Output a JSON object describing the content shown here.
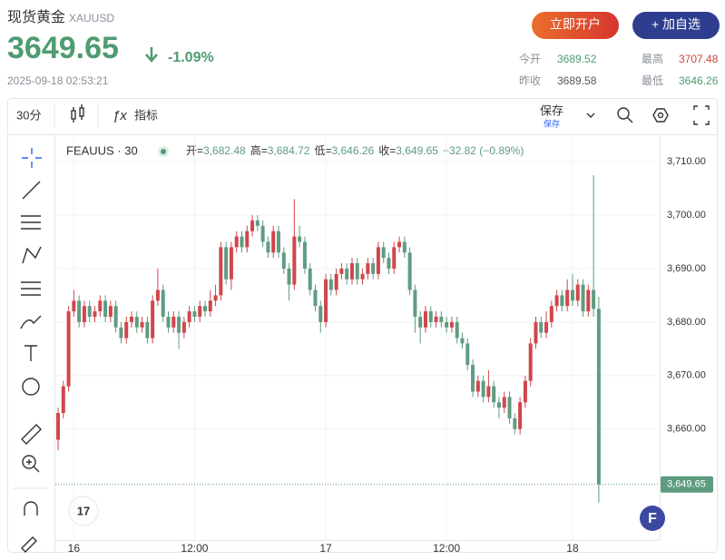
{
  "header": {
    "title": "现货黄金",
    "symbol": "XAUUSD",
    "price": "3649.65",
    "change": "-1.09%",
    "timestamp": "2025-09-18 02:53:21",
    "buttons": [
      "立即开户",
      "+ 加自选"
    ],
    "stats": [
      {
        "label": "今开",
        "value": "3689.52"
      },
      {
        "label": "最高",
        "value": "3707.48"
      },
      {
        "label": "昨收",
        "value": "3689.58"
      },
      {
        "label": "最低",
        "value": "3646.26"
      }
    ]
  },
  "toolbar": {
    "interval": "30分",
    "indicators": "指标",
    "save": "保存",
    "save_sub": "保存"
  },
  "chart_data": {
    "type": "candlestick",
    "symbol": "FEAUUS · 30",
    "legend": [
      {
        "label": "开=",
        "value": "3,682.48"
      },
      {
        "label": "高=",
        "value": "3,684.72"
      },
      {
        "label": "低=",
        "value": "3,646.26"
      },
      {
        "label": "收=",
        "value": "3,649.65"
      }
    ],
    "legend_change": "−32.82 (−0.89%)",
    "up_color": "#d0464c",
    "down_color": "#5f9c80",
    "open": [
      3658,
      3663,
      3668,
      3682,
      3684,
      3680,
      3683,
      3681,
      3682,
      3684,
      3681,
      3683,
      3679,
      3677,
      3680,
      3681,
      3679,
      3680,
      3677,
      3684,
      3686,
      3681,
      3679,
      3681,
      3678,
      3680,
      3682,
      3681,
      3683,
      3682,
      3684,
      3685,
      3694,
      3688,
      3694,
      3696,
      3694,
      3697,
      3699,
      3698,
      3695,
      3693,
      3697,
      3693,
      3690,
      3687,
      3696,
      3695,
      3690,
      3686,
      3683,
      3680,
      3688,
      3686,
      3689,
      3690,
      3688,
      3691,
      3688,
      3689,
      3691,
      3689,
      3694,
      3692,
      3690,
      3694,
      3695,
      3693,
      3686,
      3681,
      3679,
      3682,
      3680,
      3681,
      3680,
      3679,
      3680,
      3677,
      3676,
      3672,
      3667,
      3669,
      3666,
      3668,
      3665,
      3664,
      3666,
      3662,
      3660,
      3665,
      3669,
      3676,
      3680,
      3678,
      3680,
      3683,
      3685,
      3683,
      3686,
      3684,
      3687,
      3682,
      3686,
      3682.48
    ],
    "high": [
      3664,
      3669,
      3683,
      3686,
      3685,
      3684,
      3684,
      3683,
      3685,
      3685,
      3684,
      3684,
      3680,
      3681,
      3682,
      3682,
      3681,
      3681,
      3685,
      3690,
      3687,
      3682,
      3682,
      3682,
      3681,
      3683,
      3683,
      3684,
      3684,
      3686,
      3687,
      3695,
      3695,
      3695,
      3697,
      3697,
      3698,
      3700,
      3700,
      3699,
      3696,
      3698,
      3698,
      3694,
      3691,
      3703,
      3698,
      3696,
      3691,
      3687,
      3684,
      3689,
      3689,
      3690,
      3691,
      3691,
      3692,
      3692,
      3690,
      3692,
      3692,
      3695,
      3695,
      3693,
      3695,
      3696,
      3696,
      3694,
      3687,
      3682,
      3683,
      3683,
      3682,
      3682,
      3681,
      3681,
      3681,
      3678,
      3677,
      3673,
      3670,
      3670,
      3671,
      3669,
      3666,
      3667,
      3667,
      3663,
      3666,
      3670,
      3677,
      3681,
      3681,
      3682,
      3684,
      3686,
      3686,
      3688,
      3689,
      3688,
      3688,
      3687,
      3707.48,
      3684.72
    ],
    "low": [
      3656,
      3662,
      3667,
      3681,
      3679,
      3679,
      3680,
      3680,
      3681,
      3680,
      3680,
      3678,
      3676,
      3676,
      3679,
      3678,
      3678,
      3676,
      3676,
      3683,
      3680,
      3678,
      3678,
      3675,
      3677,
      3679,
      3680,
      3680,
      3681,
      3681,
      3683,
      3684,
      3687,
      3686,
      3693,
      3693,
      3693,
      3696,
      3697,
      3694,
      3692,
      3692,
      3692,
      3689,
      3684,
      3686,
      3694,
      3689,
      3685,
      3682,
      3678,
      3679,
      3685,
      3685,
      3688,
      3687,
      3687,
      3687,
      3687,
      3688,
      3688,
      3688,
      3691,
      3689,
      3689,
      3693,
      3692,
      3685,
      3678,
      3676,
      3678,
      3679,
      3679,
      3679,
      3678,
      3678,
      3676,
      3675,
      3671,
      3666,
      3666,
      3665,
      3665,
      3664,
      3662,
      3663,
      3661,
      3659,
      3659,
      3664,
      3668,
      3675,
      3677,
      3677,
      3679,
      3682,
      3682,
      3682,
      3683,
      3683,
      3681,
      3681,
      3681,
      3646.26
    ],
    "close": [
      3663,
      3668,
      3682,
      3684,
      3680,
      3683,
      3681,
      3682,
      3684,
      3681,
      3683,
      3679,
      3677,
      3680,
      3681,
      3679,
      3680,
      3677,
      3684,
      3686,
      3681,
      3679,
      3681,
      3678,
      3680,
      3682,
      3681,
      3683,
      3682,
      3684,
      3685,
      3694,
      3688,
      3694,
      3696,
      3694,
      3697,
      3699,
      3698,
      3695,
      3693,
      3697,
      3693,
      3690,
      3687,
      3696,
      3695,
      3690,
      3686,
      3683,
      3680,
      3688,
      3686,
      3689,
      3690,
      3688,
      3691,
      3688,
      3689,
      3691,
      3689,
      3694,
      3692,
      3690,
      3694,
      3695,
      3693,
      3686,
      3681,
      3679,
      3682,
      3680,
      3681,
      3680,
      3679,
      3680,
      3677,
      3676,
      3672,
      3667,
      3669,
      3666,
      3668,
      3665,
      3664,
      3666,
      3662,
      3660,
      3665,
      3669,
      3676,
      3680,
      3678,
      3680,
      3683,
      3685,
      3683,
      3686,
      3684,
      3687,
      3682,
      3686,
      3682.48,
      3649.65
    ],
    "xlim": [
      -0.52,
      114.6
    ],
    "xticks": [
      {
        "value": 3,
        "label": "16"
      },
      {
        "value": 26,
        "label": "12:00"
      },
      {
        "value": 51,
        "label": "17"
      },
      {
        "value": 74,
        "label": "12:00"
      },
      {
        "value": 98,
        "label": "18"
      }
    ],
    "ylim": [
      3639.25,
      3714.93
    ],
    "yticks": [
      {
        "value": 3660,
        "label": "3,660.00"
      },
      {
        "value": 3670,
        "label": "3,670.00"
      },
      {
        "value": 3680,
        "label": "3,680.00"
      },
      {
        "value": 3690,
        "label": "3,690.00"
      },
      {
        "value": 3700,
        "label": "3,700.00"
      },
      {
        "value": 3710,
        "label": "3,710.00"
      }
    ],
    "last_price": {
      "value": 3649.65,
      "label": "3,649.65"
    },
    "grid": true
  }
}
